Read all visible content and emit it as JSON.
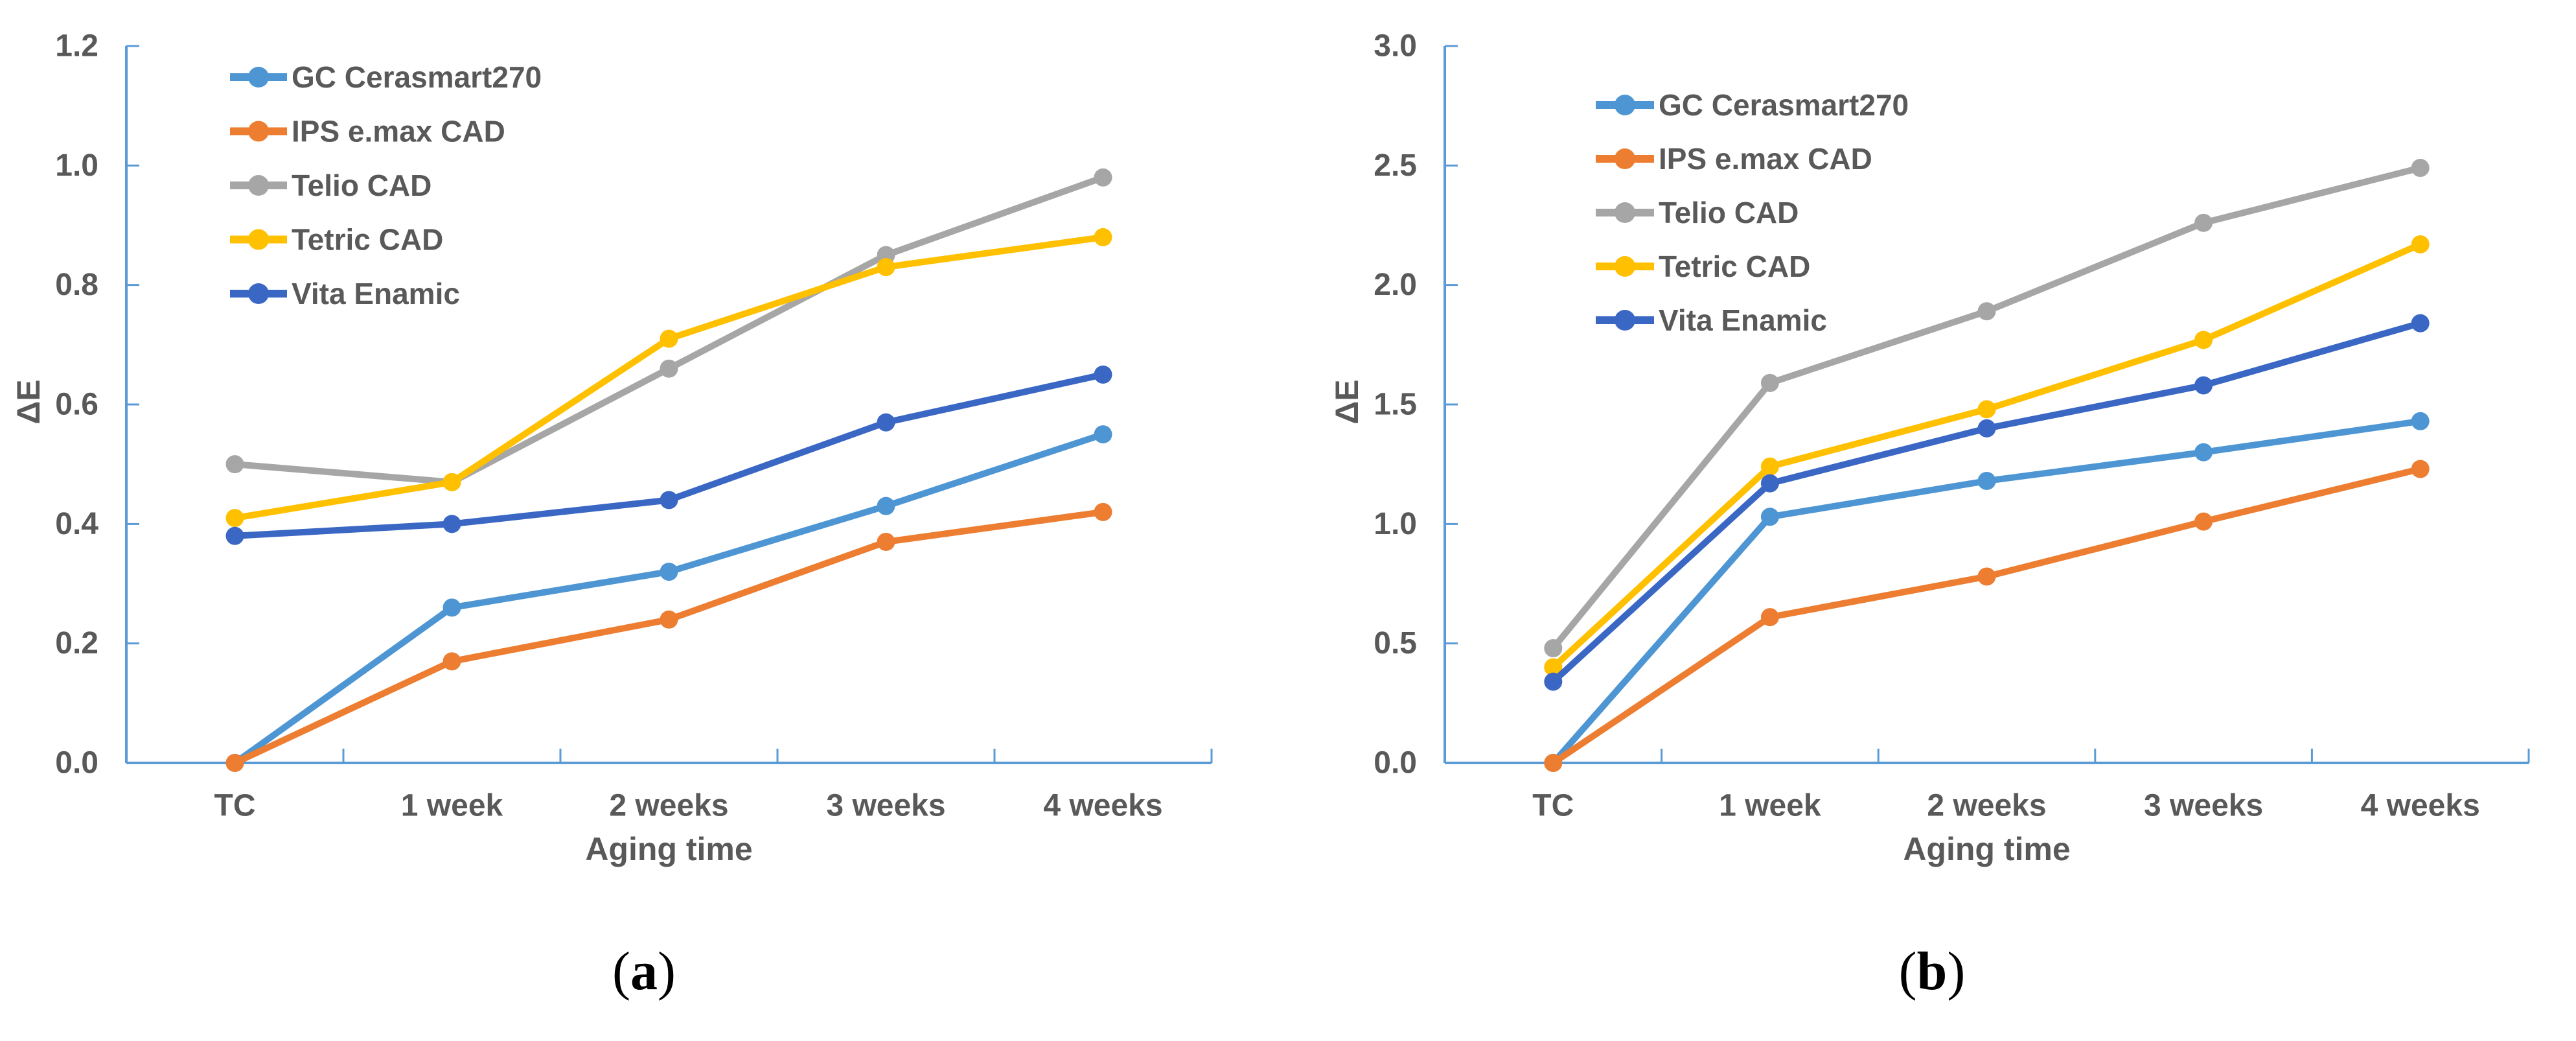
{
  "figure": {
    "background": "#ffffff",
    "text_color": "#595959",
    "axis_color": "#5B9BD5",
    "caption_color": "#000000",
    "captions": [
      {
        "open": "(",
        "letter": "a",
        "close": ")"
      },
      {
        "open": "(",
        "letter": "b",
        "close": ")"
      }
    ]
  },
  "chart_data": [
    {
      "id": "a",
      "type": "line",
      "title": "",
      "xlabel": "Aging time",
      "ylabel": "ΔE",
      "categories": [
        "TC",
        "1 week",
        "2 weeks",
        "3 weeks",
        "4 weeks"
      ],
      "ylim": [
        0,
        1.2
      ],
      "ytick_labels": [
        "0.0",
        "0.2",
        "0.4",
        "0.6",
        "0.8",
        "1.0",
        "1.2"
      ],
      "grid": false,
      "legend_position": "top-left-inside",
      "series": [
        {
          "name": "GC Cerasmart270",
          "color": "#4E96D3",
          "values": [
            0.0,
            0.26,
            0.32,
            0.43,
            0.55
          ]
        },
        {
          "name": "IPS e.max CAD",
          "color": "#ED7D31",
          "values": [
            0.0,
            0.17,
            0.24,
            0.37,
            0.42
          ]
        },
        {
          "name": "Telio CAD",
          "color": "#A6A6A6",
          "values": [
            0.5,
            0.47,
            0.66,
            0.85,
            0.98
          ]
        },
        {
          "name": "Tetric CAD",
          "color": "#FFC000",
          "values": [
            0.41,
            0.47,
            0.71,
            0.83,
            0.88
          ]
        },
        {
          "name": "Vita Enamic",
          "color": "#3A66C4",
          "values": [
            0.38,
            0.4,
            0.44,
            0.57,
            0.65
          ]
        }
      ]
    },
    {
      "id": "b",
      "type": "line",
      "title": "",
      "xlabel": "Aging time",
      "ylabel": "ΔE",
      "categories": [
        "TC",
        "1 week",
        "2 weeks",
        "3 weeks",
        "4 weeks"
      ],
      "ylim": [
        0,
        3.0
      ],
      "ytick_labels": [
        "0.0",
        "0.5",
        "1.0",
        "1.5",
        "2.0",
        "2.5",
        "3.0"
      ],
      "grid": false,
      "legend_position": "top-left-inside",
      "series": [
        {
          "name": "GC Cerasmart270",
          "color": "#4E96D3",
          "values": [
            0.0,
            1.03,
            1.18,
            1.3,
            1.43
          ]
        },
        {
          "name": "IPS e.max CAD",
          "color": "#ED7D31",
          "values": [
            0.0,
            0.61,
            0.78,
            1.01,
            1.23
          ]
        },
        {
          "name": "Telio CAD",
          "color": "#A6A6A6",
          "values": [
            0.48,
            1.59,
            1.89,
            2.26,
            2.49
          ]
        },
        {
          "name": "Tetric CAD",
          "color": "#FFC000",
          "values": [
            0.4,
            1.24,
            1.48,
            1.77,
            2.17
          ]
        },
        {
          "name": "Vita Enamic",
          "color": "#3A66C4",
          "values": [
            0.34,
            1.17,
            1.4,
            1.58,
            1.84
          ]
        }
      ]
    }
  ]
}
